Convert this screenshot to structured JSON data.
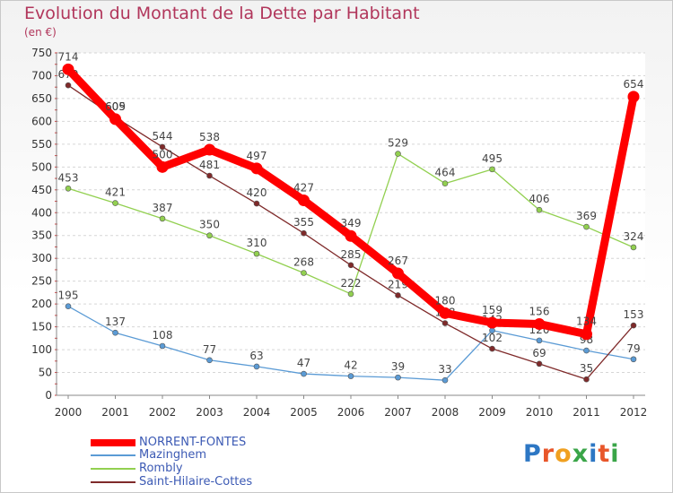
{
  "title": "Evolution du Montant de la Dette par Habitant",
  "subtitle": "(en €)",
  "logo": {
    "text": "Proxiti",
    "letters": [
      {
        "ch": "P",
        "color": "#2d77c4"
      },
      {
        "ch": "r",
        "color": "#e8562a"
      },
      {
        "ch": "o",
        "color": "#f0a020"
      },
      {
        "ch": "x",
        "color": "#3aa548"
      },
      {
        "ch": "i",
        "color": "#2d77c4"
      },
      {
        "ch": "t",
        "color": "#e8562a"
      },
      {
        "ch": "i",
        "color": "#3aa548"
      }
    ]
  },
  "chart_data": {
    "type": "line",
    "title": "Evolution du Montant de la Dette par Habitant",
    "subtitle": "(en €)",
    "xlabel": "",
    "ylabel": "",
    "x": [
      "2000",
      "2001",
      "2002",
      "2003",
      "2004",
      "2005",
      "2006",
      "2007",
      "2008",
      "2009",
      "2010",
      "2011",
      "2012"
    ],
    "yticks": [
      0,
      50,
      100,
      150,
      200,
      250,
      300,
      350,
      400,
      450,
      500,
      550,
      600,
      650,
      700,
      750
    ],
    "ylim": [
      0,
      750
    ],
    "grid": "horizontal",
    "legend_position": "bottom-left",
    "series": [
      {
        "name": "NORRENT-FONTES",
        "color": "#ff0000",
        "emphasis": true,
        "values": [
          714,
          605,
          500,
          538,
          497,
          427,
          349,
          267,
          180,
          159,
          156,
          134,
          654
        ],
        "labels": [
          "714",
          "605",
          "500",
          "538",
          "497",
          "427",
          "349",
          "267",
          "180",
          "159",
          "156",
          "134",
          "654"
        ]
      },
      {
        "name": "Mazinghem",
        "color": "#5b9bd5",
        "emphasis": false,
        "values": [
          195,
          137,
          108,
          77,
          63,
          47,
          42,
          39,
          33,
          142,
          120,
          98,
          79
        ],
        "labels": [
          "195",
          "137",
          "108",
          "77",
          "63",
          "47",
          "42",
          "39",
          "33",
          "142",
          "120",
          "98",
          "79"
        ]
      },
      {
        "name": "Rombly",
        "color": "#92d050",
        "emphasis": false,
        "values": [
          453,
          421,
          387,
          350,
          310,
          268,
          222,
          529,
          464,
          495,
          406,
          369,
          324
        ],
        "labels": [
          "453",
          "421",
          "387",
          "350",
          "310",
          "268",
          "222",
          "529",
          "464",
          "495",
          "406",
          "369",
          "324"
        ]
      },
      {
        "name": "Saint-Hilaire-Cottes",
        "color": "#7f2a2a",
        "emphasis": false,
        "values": [
          679,
          609,
          544,
          481,
          420,
          355,
          285,
          219,
          158,
          102,
          69,
          35,
          153
        ],
        "labels": [
          "679",
          "609",
          "544",
          "481",
          "420",
          "355",
          "285",
          "219",
          "158",
          "102",
          "69",
          "35",
          "153"
        ]
      }
    ]
  }
}
